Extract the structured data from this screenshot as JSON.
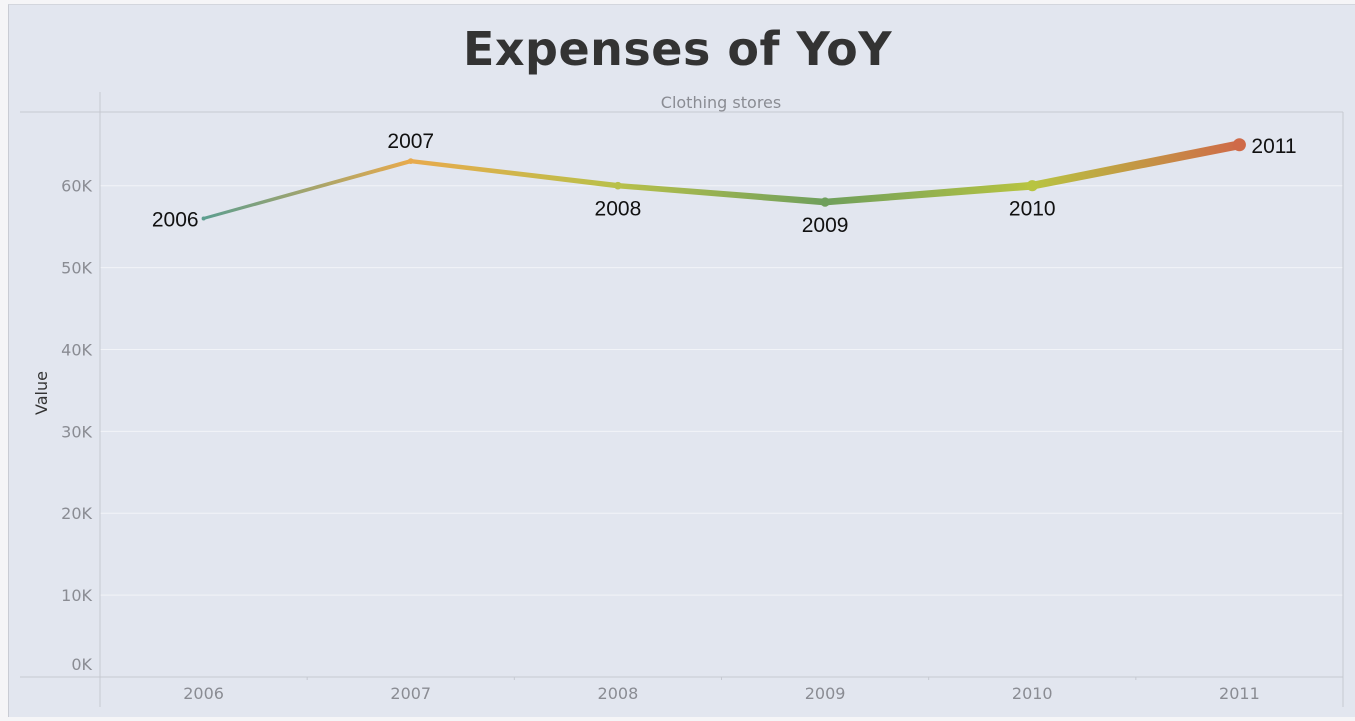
{
  "title": "Expenses of YoY",
  "chart_data": {
    "type": "line",
    "title": "Expenses of YoY",
    "pane_header": "Clothing stores",
    "xlabel": "",
    "ylabel": "Value",
    "categories": [
      "2006",
      "2007",
      "2008",
      "2009",
      "2010",
      "2011"
    ],
    "series": [
      {
        "values": [
          56000,
          63000,
          60000,
          58000,
          60000,
          65000
        ],
        "point_labels": [
          "2006",
          "2007",
          "2008",
          "2009",
          "2010",
          "2011"
        ],
        "colors": [
          "#5c9e8f",
          "#e8aa4c",
          "#b8c04a",
          "#6f9f5c",
          "#b8c441",
          "#cf6a48"
        ]
      }
    ],
    "ylim": [
      0,
      69000
    ],
    "yticks": [
      0,
      10000,
      20000,
      30000,
      40000,
      50000,
      60000
    ],
    "ytick_labels": [
      "0K",
      "10K",
      "20K",
      "30K",
      "40K",
      "50K",
      "60K"
    ],
    "grid": true,
    "legend": "none"
  }
}
